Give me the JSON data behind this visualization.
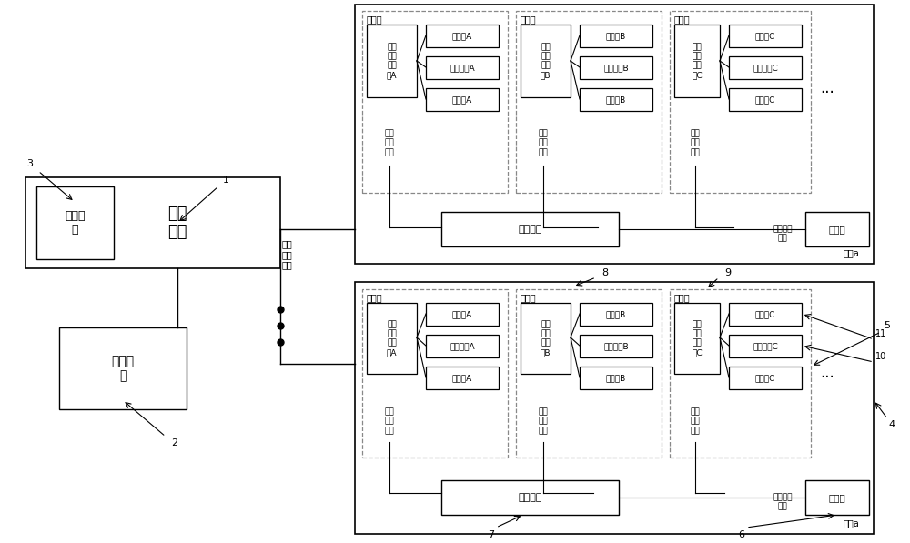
{
  "bg_color": "#ffffff",
  "figsize": [
    10.0,
    5.97
  ],
  "dpi": 100,
  "labels": {
    "jishi": "计时模\n块",
    "kongzhi": "控制\n终端",
    "zongguanli": "总管理\n员",
    "xinxi_left": "信息\n传输\n模块",
    "ziyu": "子区域",
    "shuju_A": "数据\n采集\n工作\n站A",
    "shuju_B": "数据\n采集\n工作\n站B",
    "shuju_C": "数据\n采集\n工作\n站C",
    "gzz_A": "工作站A",
    "gzz_B": "工作站B",
    "gzz_C": "工作站C",
    "kzpt_A": "控制平台A",
    "kzpt_B": "控制平台B",
    "kzpt_C": "控制平台C",
    "ddy_A": "调度员A",
    "ddy_B": "调度员B",
    "ddy_C": "调度员C",
    "xinxi_mod": "信息\n传输\n模块",
    "kzzz": "控制子站",
    "xinxi_guanli": "信息传输\n模块",
    "guanliyuan": "管理员",
    "quyu_a": "区域a",
    "dots": "...",
    "n1": "1",
    "n2": "2",
    "n3": "3",
    "n4": "4",
    "n5": "5",
    "n6": "6",
    "n7": "7",
    "n8": "8",
    "n9": "9",
    "n10": "10",
    "n11": "11"
  }
}
